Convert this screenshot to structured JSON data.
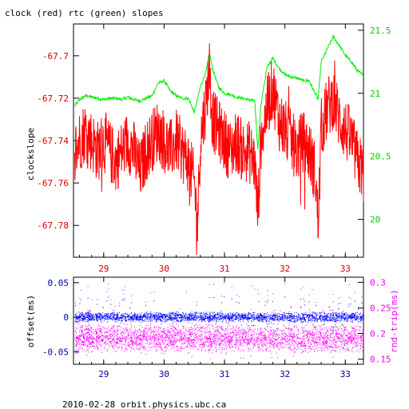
{
  "chart_data": [
    {
      "type": "line",
      "title": "clock (red) rtc (green) slopes",
      "ylabel": "clockslope",
      "xlim": [
        28.5,
        33.3
      ],
      "ylim_left": [
        -67.795,
        -67.685
      ],
      "ylim_right": [
        19.7,
        21.55
      ],
      "xticks": [
        29,
        30,
        31,
        32,
        33
      ],
      "yticks_left": [
        -67.7,
        -67.72,
        -67.74,
        -67.76,
        -67.78
      ],
      "yticks_right": [
        20,
        20.5,
        21,
        21.5
      ],
      "colors": {
        "clock": "#ff0000",
        "rtc": "#00ee00",
        "x_tick_labels": "#cc0000"
      },
      "series": [
        {
          "axis": "left",
          "x": [
            28.52,
            28.6,
            28.7,
            28.8,
            28.9,
            29.0,
            29.1,
            29.2,
            29.3,
            29.4,
            29.5,
            29.6,
            29.7,
            29.8,
            29.9,
            30.0,
            30.1,
            30.2,
            30.3,
            30.4,
            30.5,
            30.55,
            30.6,
            30.7,
            30.75,
            30.8,
            30.9,
            31.0,
            31.1,
            31.2,
            31.3,
            31.4,
            31.5,
            31.55,
            31.6,
            31.7,
            31.8,
            31.9,
            32.0,
            32.1,
            32.2,
            32.3,
            32.4,
            32.5,
            32.55,
            32.6,
            32.7,
            32.8,
            32.9,
            33.0,
            33.1,
            33.2,
            33.3
          ],
          "y": [
            -67.745,
            -67.74,
            -67.735,
            -67.74,
            -67.745,
            -67.74,
            -67.745,
            -67.75,
            -67.745,
            -67.74,
            -67.745,
            -67.755,
            -67.745,
            -67.74,
            -67.735,
            -67.74,
            -67.745,
            -67.74,
            -67.745,
            -67.75,
            -67.76,
            -67.78,
            -67.74,
            -67.72,
            -67.705,
            -67.73,
            -67.735,
            -67.74,
            -67.745,
            -67.74,
            -67.745,
            -67.745,
            -67.75,
            -67.775,
            -67.74,
            -67.725,
            -67.715,
            -67.73,
            -67.735,
            -67.74,
            -67.745,
            -67.74,
            -67.745,
            -67.755,
            -67.78,
            -67.735,
            -67.725,
            -67.72,
            -67.73,
            -67.735,
            -67.74,
            -67.75,
            -67.755
          ]
        },
        {
          "axis": "right",
          "x": [
            28.52,
            28.6,
            28.7,
            28.8,
            28.9,
            29.0,
            29.1,
            29.2,
            29.3,
            29.4,
            29.5,
            29.6,
            29.7,
            29.8,
            29.9,
            30.0,
            30.1,
            30.2,
            30.3,
            30.4,
            30.5,
            30.6,
            30.7,
            30.75,
            30.8,
            30.9,
            31.0,
            31.1,
            31.2,
            31.3,
            31.4,
            31.5,
            31.55,
            31.6,
            31.7,
            31.8,
            31.9,
            32.0,
            32.1,
            32.2,
            32.3,
            32.4,
            32.5,
            32.55,
            32.6,
            32.7,
            32.8,
            32.9,
            33.0,
            33.1,
            33.2,
            33.3
          ],
          "y": [
            20.9,
            20.95,
            20.98,
            20.97,
            20.96,
            20.95,
            20.96,
            20.96,
            20.95,
            20.97,
            20.95,
            20.94,
            20.96,
            20.98,
            21.08,
            21.1,
            21.02,
            20.98,
            20.96,
            20.96,
            20.85,
            21.05,
            21.18,
            21.32,
            21.2,
            21.05,
            21.0,
            20.99,
            20.97,
            20.96,
            20.95,
            20.94,
            20.55,
            20.9,
            21.2,
            21.28,
            21.2,
            21.15,
            21.13,
            21.12,
            21.1,
            21.1,
            21.0,
            20.95,
            21.25,
            21.35,
            21.45,
            21.38,
            21.3,
            21.25,
            21.18,
            21.14
          ]
        }
      ]
    },
    {
      "type": "scatter",
      "ylabel_left": "offset(ms)",
      "ylabel_right": "rnd-trip(ms)",
      "xlim": [
        28.5,
        33.3
      ],
      "ylim_left": [
        -0.068,
        0.058
      ],
      "ylim_right": [
        0.14,
        0.31
      ],
      "xticks": [
        29,
        30,
        31,
        32,
        33
      ],
      "yticks_left": [
        0.05,
        0,
        -0.05
      ],
      "yticks_right": [
        0.3,
        0.25,
        0.2,
        0.15
      ],
      "colors": {
        "offset": "#0000ff",
        "rnd_trip": "#ff00ff",
        "x_tick_labels": "#000099"
      },
      "series": [
        {
          "axis": "left",
          "band_center": 0.0,
          "band_halfwidth": 0.008,
          "outlier_range": [
            -0.02,
            0.03
          ]
        },
        {
          "axis": "right",
          "band_center": 0.19,
          "band_halfwidth": 0.03,
          "outlier_range": [
            0.15,
            0.3
          ]
        }
      ]
    }
  ],
  "footer": "2010-02-28 orbit.physics.ubc.ca"
}
